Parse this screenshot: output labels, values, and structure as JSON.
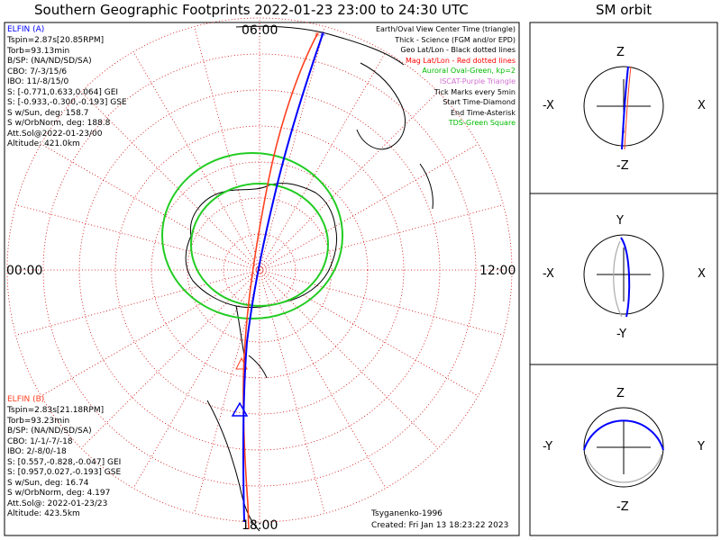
{
  "title": "Southern Geographic Footprints 2022-01-23 23:00 to 24:30 UTC",
  "orbit_title": "SM orbit",
  "map": {
    "hour_labels": {
      "top": "06:00",
      "left": "00:00",
      "right": "12:00",
      "bottom": "18:00"
    },
    "legend": [
      {
        "text": "Earth/Oval View Center Time (triangle)",
        "color": "#000000"
      },
      {
        "text": "Thick - Science (FGM and/or EPD)",
        "color": "#000000"
      },
      {
        "text": "Geo Lat/Lon - Black dotted lines",
        "color": "#000000"
      },
      {
        "text": "Mag Lat/Lon - Red dotted lines",
        "color": "#ff0000"
      },
      {
        "text": "Auroral Oval-Green, kp=2",
        "color": "#00bb00"
      },
      {
        "text": "ISCAT-Purple Triangle",
        "color": "#d070d0"
      },
      {
        "text": "Tick Marks every 5min",
        "color": "#000000"
      },
      {
        "text": "Start Time-Diamond",
        "color": "#000000"
      },
      {
        "text": "End Time-Asterisk",
        "color": "#000000"
      },
      {
        "text": "TDS-Green Square",
        "color": "#00bb00"
      }
    ],
    "model": "Tsyganenko-1996",
    "created": "Created: Fri Jan 13 18:23:22 2023"
  },
  "elfin_a": {
    "name": "ELFIN (A)",
    "color": "#0000ff",
    "lines": [
      "Tspin=2.87s[20.85RPM]",
      "Torb=93.13min",
      "B/SP: (NA/ND/SD/SA)",
      "CBO: 7/-3/15/6",
      "IBO: 11/-8/15/0",
      "S: [-0.771,0.633,0.064] GEI",
      "S: [-0.933,-0.300,-0.193] GSE",
      "S w/Sun, deg: 158.7",
      "S w/OrbNorm, deg: 188.8",
      "Att.Sol@2022-01-23/00",
      "Altitude: 421.0km"
    ]
  },
  "elfin_b": {
    "name": "ELFIN (B)",
    "color": "#ff4020",
    "lines": [
      "Tspin=2.83s[21.18RPM]",
      "Torb=93.23min",
      "B/SP: (NA/ND/SD/SA)",
      "CBO: 1/-1/-7/-18",
      "IBO: 2/-8/0/-18",
      "S: [0.557,-0.828,-0.047] GEI",
      "S: [0.957,0.027,-0.193] GSE",
      "S w/Sun, deg: 16.74",
      "S w/OrbNorm, deg: 4.197",
      "Att.Sol@: 2022-01-23/23",
      "Altitude: 423.5km"
    ]
  },
  "orbit_panels": [
    {
      "top": "Z",
      "bottom": "-Z",
      "left": "-X",
      "right": "X"
    },
    {
      "top": "Y",
      "bottom": "-Y",
      "left": "-X",
      "right": "X"
    },
    {
      "top": "Z",
      "bottom": "-Z",
      "left": "-Y",
      "right": "Y"
    }
  ],
  "colors": {
    "elfin_a": "#0000ff",
    "elfin_b": "#ff4020",
    "oval": "#22cc22",
    "grid": "#d00000"
  }
}
